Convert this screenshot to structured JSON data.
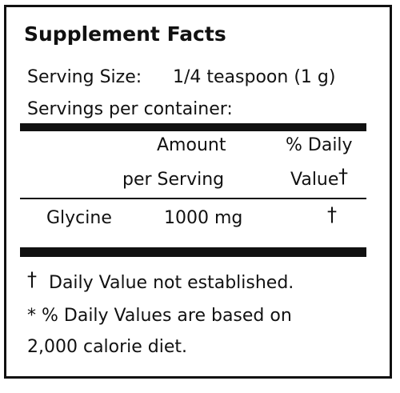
{
  "title": "Supplement Facts",
  "serving_size": {
    "label": "Serving Size:",
    "value": "1/4 teaspoon (1 g)"
  },
  "servings_per_container": {
    "label": "Servings per container:"
  },
  "table": {
    "headers": {
      "amount_line1": "Amount",
      "amount_line2": "per Serving",
      "dv_line1": "% Daily",
      "dv_line2": "Value",
      "dv_mark": "†"
    },
    "rows": [
      {
        "name": "Glycine",
        "amount": "1000 mg",
        "dv": "†"
      }
    ]
  },
  "footnotes": {
    "dagger_mark": "†",
    "dagger_text": "Daily Value not established.",
    "line2": "* % Daily Values are based on",
    "line3": "2,000 calorie diet."
  }
}
